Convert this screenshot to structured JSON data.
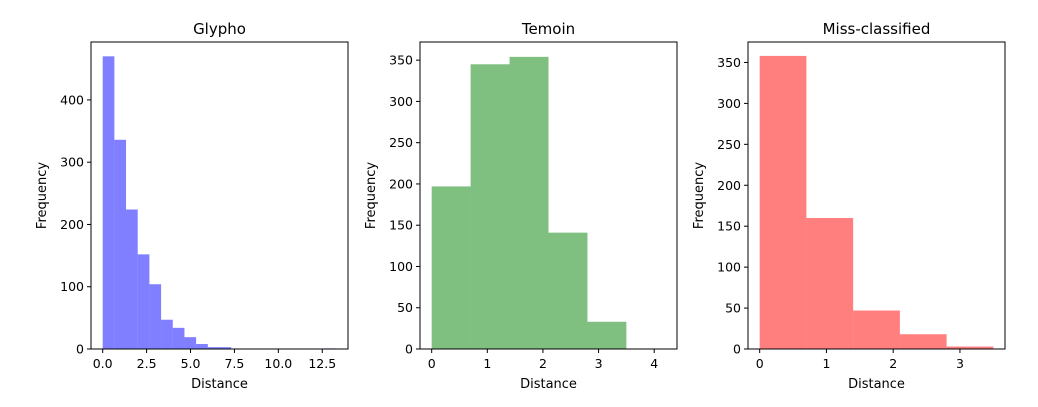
{
  "chart_data": [
    {
      "type": "bar",
      "title": "Glypho",
      "xlabel": "Distance",
      "ylabel": "Frequency",
      "color": "#0000ff",
      "opacity": 0.5,
      "bin_edges": [
        0.0,
        0.665,
        1.33,
        1.995,
        2.66,
        3.325,
        3.99,
        4.655,
        5.32,
        5.985,
        6.65,
        7.315,
        7.98,
        8.645,
        9.31,
        9.975,
        10.64,
        11.305,
        11.97,
        12.635,
        13.3
      ],
      "values": [
        470,
        336,
        224,
        152,
        104,
        47,
        34,
        19,
        8,
        3,
        3,
        0,
        0,
        0,
        0,
        0,
        0,
        0,
        0,
        1
      ],
      "xlim": [
        -0.665,
        13.965
      ],
      "ylim": [
        0,
        493
      ],
      "xticks": [
        0.0,
        2.5,
        5.0,
        7.5,
        10.0,
        12.5
      ],
      "xtick_labels": [
        "0.0",
        "2.5",
        "5.0",
        "7.5",
        "10.0",
        "12.5"
      ],
      "yticks": [
        0,
        100,
        200,
        300,
        400
      ],
      "ytick_labels": [
        "0",
        "100",
        "200",
        "300",
        "400"
      ]
    },
    {
      "type": "bar",
      "title": "Temoin",
      "xlabel": "Distance",
      "ylabel": "Frequency",
      "color": "#008000",
      "opacity": 0.5,
      "bin_edges": [
        0.0,
        0.7,
        1.4,
        2.1,
        2.8,
        3.5,
        4.2
      ],
      "values": [
        197,
        345,
        354,
        141,
        33,
        0
      ],
      "xlim": [
        -0.21,
        4.41
      ],
      "ylim": [
        0,
        372
      ],
      "xticks": [
        0,
        1,
        2,
        3,
        4
      ],
      "xtick_labels": [
        "0",
        "1",
        "2",
        "3",
        "4"
      ],
      "yticks": [
        0,
        50,
        100,
        150,
        200,
        250,
        300,
        350
      ],
      "ytick_labels": [
        "0",
        "50",
        "100",
        "150",
        "200",
        "250",
        "300",
        "350"
      ]
    },
    {
      "type": "bar",
      "title": "Miss-classified",
      "xlabel": "Distance",
      "ylabel": "Frequency",
      "color": "#ff0000",
      "opacity": 0.5,
      "bin_edges": [
        0.0,
        0.7,
        1.4,
        2.1,
        2.8,
        3.5
      ],
      "values": [
        358,
        160,
        47,
        18,
        3
      ],
      "xlim": [
        -0.175,
        3.675
      ],
      "ylim": [
        0,
        375
      ],
      "xticks": [
        0,
        1,
        2,
        3
      ],
      "xtick_labels": [
        "0",
        "1",
        "2",
        "3"
      ],
      "yticks": [
        0,
        50,
        100,
        150,
        200,
        250,
        300,
        350
      ],
      "ytick_labels": [
        "0",
        "50",
        "100",
        "150",
        "200",
        "250",
        "300",
        "350"
      ]
    }
  ]
}
